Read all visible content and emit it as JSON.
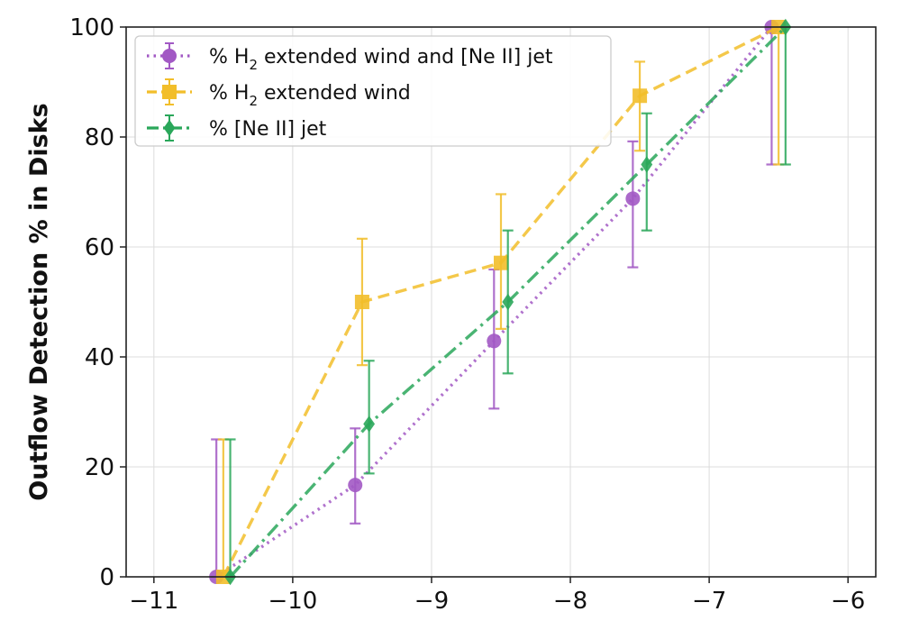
{
  "chart_data": {
    "type": "line",
    "title": "",
    "xlabel": "",
    "ylabel": "Outflow Detection % in Disks",
    "xlim": [
      -11.2,
      -5.8
    ],
    "ylim": [
      0,
      100
    ],
    "xticks": [
      -11,
      -10,
      -9,
      -8,
      -7,
      -6
    ],
    "xtick_labels": [
      "−11",
      "−10",
      "−9",
      "−8",
      "−7",
      "−6"
    ],
    "yticks": [
      0,
      20,
      40,
      60,
      80,
      100
    ],
    "ytick_labels": [
      "0",
      "20",
      "40",
      "60",
      "80",
      "100"
    ],
    "grid": true,
    "legend_position": "top-left",
    "series": [
      {
        "name_parts": [
          "% H",
          "2",
          " extended wind and [Ne II] jet"
        ],
        "color": "#a259c4",
        "line_style": "dotted",
        "marker": "circle",
        "x": [
          -10.55,
          -9.55,
          -8.55,
          -7.55,
          -6.55
        ],
        "y": [
          0,
          16.7,
          42.9,
          68.8,
          100
        ],
        "err_low": [
          0,
          7,
          12.3,
          12.5,
          25
        ],
        "err_high": [
          25,
          10.3,
          13,
          10.4,
          0
        ]
      },
      {
        "name_parts": [
          "% H",
          "2",
          " extended wind"
        ],
        "color": "#f2be2a",
        "line_style": "dashed",
        "marker": "square",
        "x": [
          -10.5,
          -9.5,
          -8.5,
          -7.5,
          -6.5
        ],
        "y": [
          0,
          50,
          57.1,
          87.5,
          100
        ],
        "err_low": [
          0,
          11.5,
          12,
          10,
          25
        ],
        "err_high": [
          25,
          11.5,
          12.5,
          6.2,
          0
        ]
      },
      {
        "name_parts": [
          "% [Ne II] jet",
          "",
          ""
        ],
        "color": "#2aa75a",
        "line_style": "dashdot",
        "marker": "diamond",
        "x": [
          -10.45,
          -9.45,
          -8.45,
          -7.45,
          -6.45
        ],
        "y": [
          0,
          27.8,
          50,
          75,
          100
        ],
        "err_low": [
          0,
          9,
          13,
          12,
          25
        ],
        "err_high": [
          25,
          11.5,
          13,
          9.3,
          0
        ]
      }
    ]
  }
}
